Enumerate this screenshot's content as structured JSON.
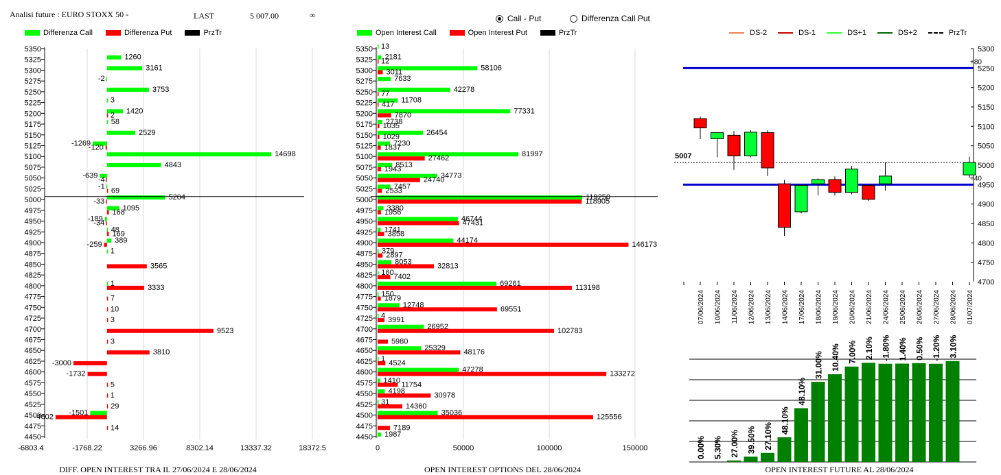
{
  "header": {
    "title": "Analisi future : EURO STOXX 50 -",
    "last_label": "LAST",
    "last_value": "5 007.00",
    "infinity_symbol": "∞"
  },
  "view_toggle": {
    "options": [
      {
        "label": "Call - Put",
        "selected": true
      },
      {
        "label": "Differenza Call Put",
        "selected": false
      }
    ]
  },
  "colors": {
    "call": "#00ff00",
    "put": "#ff0000",
    "przTr": "#000000",
    "bull_candle": "#00ff33",
    "bear_candle": "#ff0000",
    "level_line": "#0000cc",
    "bar_green": "#008000"
  },
  "chart_data": [
    {
      "type": "bar",
      "orientation": "horizontal",
      "legend": [
        "Differenza Call",
        "Differenza Put",
        "PrzTr"
      ],
      "caption": "DIFF. OPEN INTEREST TRA IL 27/06/2024 E 28/06/2024",
      "categories": [
        "5350",
        "5325",
        "5300",
        "5275",
        "5250",
        "5225",
        "5200",
        "5175",
        "5150",
        "5125",
        "5100",
        "5075",
        "5050",
        "5025",
        "5000",
        "4975",
        "4950",
        "4925",
        "4900",
        "4875",
        "4850",
        "4825",
        "4800",
        "4775",
        "4750",
        "4725",
        "4700",
        "4675",
        "4650",
        "4625",
        "4600",
        "4575",
        "4550",
        "4525",
        "4500",
        "4475",
        "4450"
      ],
      "series": [
        {
          "name": "Differenza Call",
          "values": [
            null,
            1260,
            3161,
            -2,
            3753,
            3,
            1420,
            58,
            2529,
            -1269,
            14698,
            4843,
            -639,
            -1,
            5204,
            1095,
            -189,
            48,
            389,
            1,
            null,
            null,
            1,
            null,
            null,
            null,
            null,
            null,
            null,
            null,
            null,
            null,
            null,
            null,
            -1501,
            null,
            null
          ]
        },
        {
          "name": "Differenza Put",
          "values": [
            null,
            null,
            null,
            null,
            null,
            null,
            2,
            null,
            null,
            -120,
            null,
            null,
            -4,
            69,
            -33,
            168,
            -34,
            169,
            -259,
            null,
            3565,
            null,
            3333,
            7,
            10,
            3,
            9523,
            3,
            3810,
            -3000,
            -1732,
            5,
            1,
            29,
            -4602,
            14,
            null
          ]
        }
      ],
      "x_ticks": [
        "-6803.4",
        "-1768.22",
        "3266.96",
        "8302.14",
        "13337.32",
        "18372.5"
      ],
      "xlim": [
        -6803.4,
        18372.5
      ],
      "przTr": 5007
    },
    {
      "type": "bar",
      "orientation": "horizontal",
      "legend": [
        "Open Interest Call",
        "Open Interest Put",
        "PrzTr"
      ],
      "caption": "OPEN INTEREST OPTIONS DEL 28/06/2024",
      "categories": [
        "5350",
        "5325",
        "5300",
        "5275",
        "5250",
        "5225",
        "5200",
        "5175",
        "5150",
        "5125",
        "5100",
        "5075",
        "5050",
        "5025",
        "5000",
        "4975",
        "4950",
        "4925",
        "4900",
        "4875",
        "4850",
        "4825",
        "4800",
        "4775",
        "4750",
        "4725",
        "4700",
        "4675",
        "4650",
        "4625",
        "4600",
        "4575",
        "4550",
        "4525",
        "4500",
        "4475",
        "4450"
      ],
      "series": [
        {
          "name": "Open Interest Call",
          "values": [
            13,
            2181,
            58106,
            7633,
            42278,
            11708,
            77331,
            2738,
            26454,
            7230,
            81997,
            8513,
            34773,
            7457,
            119250,
            3380,
            46744,
            1741,
            44174,
            379,
            8053,
            160,
            69261,
            150,
            12748,
            4,
            26952,
            null,
            25329,
            1,
            47278,
            1410,
            4198,
            31,
            35036,
            null,
            1987
          ]
        },
        {
          "name": "Open Interest Put",
          "values": [
            null,
            12,
            3011,
            null,
            77,
            417,
            7870,
            1035,
            1029,
            1837,
            27462,
            1943,
            24740,
            2533,
            118905,
            1956,
            47431,
            3858,
            146173,
            2897,
            32813,
            7402,
            113198,
            1879,
            69551,
            3991,
            102783,
            5980,
            48176,
            4524,
            133272,
            11754,
            30978,
            14360,
            125556,
            7189,
            null
          ]
        }
      ],
      "x_ticks": [
        "0",
        "50000",
        "100000",
        "150000"
      ],
      "xlim": [
        0,
        160000
      ],
      "przTr": 5007
    },
    {
      "type": "candlestick",
      "legend": [
        "DS-2",
        "DS-1",
        "DS+1",
        "DS+2",
        "PrzTr"
      ],
      "legend_colors": [
        "#f08050",
        "#cc0000",
        "#33ff33",
        "#006600",
        "#000000"
      ],
      "categories": [
        "07/06/2024",
        "10/06/2024",
        "11/06/2024",
        "12/06/2024",
        "13/06/2024",
        "14/06/2024",
        "17/06/2024",
        "18/06/2024",
        "19/06/2024",
        "20/06/2024",
        "21/06/2024",
        "24/06/2024",
        "25/06/2024",
        "26/06/2024",
        "27/06/2024",
        "28/06/2024",
        "01/07/2024"
      ],
      "candles": [
        {
          "open": 5120,
          "high": 5125,
          "low": 5067,
          "close": 5096
        },
        {
          "open": 5068,
          "high": 5082,
          "low": 5020,
          "close": 5084
        },
        {
          "open": 5077,
          "high": 5088,
          "low": 4988,
          "close": 5024
        },
        {
          "open": 5024,
          "high": 5090,
          "low": 5020,
          "close": 5085
        },
        {
          "open": 5084,
          "high": 5090,
          "low": 4972,
          "close": 4993
        },
        {
          "open": 4952,
          "high": 4962,
          "low": 4818,
          "close": 4840
        },
        {
          "open": 4880,
          "high": 4950,
          "low": 4876,
          "close": 4948
        },
        {
          "open": 4952,
          "high": 4966,
          "low": 4922,
          "close": 4963
        },
        {
          "open": 4963,
          "high": 4971,
          "low": 4922,
          "close": 4930
        },
        {
          "open": 4930,
          "high": 4998,
          "low": 4925,
          "close": 4990
        },
        {
          "open": 4948,
          "high": 4951,
          "low": 4908,
          "close": 4912
        },
        {
          "open": 4952,
          "high": 5007,
          "low": 4935,
          "close": 4972
        },
        null,
        null,
        null,
        null,
        {
          "open": 4975,
          "high": 5022,
          "low": 4967,
          "close": 5007
        }
      ],
      "y_ticks": [
        "5300",
        "5250",
        "5200",
        "5150",
        "5100",
        "5050",
        "5000",
        "4950",
        "4900",
        "4850",
        "4800",
        "4750",
        "4700"
      ],
      "ylim": [
        4700,
        5300
      ],
      "levels": [
        {
          "value": 5250,
          "label": "+80"
        },
        {
          "value": 4950,
          "label": "+40"
        }
      ],
      "przTr": 5007,
      "przTr_label": "5007"
    },
    {
      "type": "bar",
      "caption": "OPEN INTEREST FUTURE AL 28/06/2024",
      "categories": [
        "07/06/2024",
        "10/06/2024",
        "11/06/2024",
        "12/06/2024",
        "13/06/2024",
        "14/06/2024",
        "17/06/2024",
        "18/06/2024",
        "19/06/2024",
        "20/06/2024",
        "21/06/2024",
        "24/06/2024",
        "25/06/2024",
        "26/06/2024",
        "27/06/2024",
        "28/06/2024"
      ],
      "values": [
        0,
        0,
        9,
        31,
        53,
        144,
        314,
        468,
        512,
        557,
        579,
        573,
        574,
        577,
        573,
        589
      ],
      "labels": [
        "0.00%",
        "5.30%",
        "27.00%",
        "39.50%",
        "27.10%",
        "48.10%",
        "48.10%",
        "31.00%",
        "10.40%",
        "7.00%",
        "2.10%",
        "-1.80%",
        "1.40%",
        "0.50%",
        "-1.20%",
        "3.10%"
      ],
      "ylim": [
        0,
        600
      ]
    }
  ]
}
